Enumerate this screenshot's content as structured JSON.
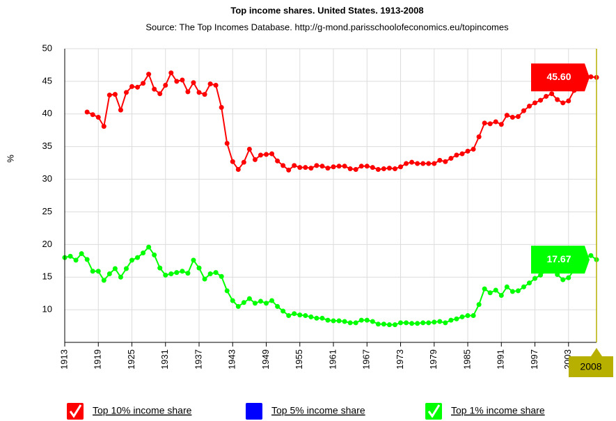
{
  "chart_data": {
    "type": "line",
    "title": "Top income shares. United States. 1913-2008",
    "subtitle": "Source: The Top Incomes Database. http://g-mond.parisschoolofeconomics.eu/topincomes",
    "y_label": "%",
    "x": [
      1913,
      1914,
      1915,
      1916,
      1917,
      1918,
      1919,
      1920,
      1921,
      1922,
      1923,
      1924,
      1925,
      1926,
      1927,
      1928,
      1929,
      1930,
      1931,
      1932,
      1933,
      1934,
      1935,
      1936,
      1937,
      1938,
      1939,
      1940,
      1941,
      1942,
      1943,
      1944,
      1945,
      1946,
      1947,
      1948,
      1949,
      1950,
      1951,
      1952,
      1953,
      1954,
      1955,
      1956,
      1957,
      1958,
      1959,
      1960,
      1961,
      1962,
      1963,
      1964,
      1965,
      1966,
      1967,
      1968,
      1969,
      1970,
      1971,
      1972,
      1973,
      1974,
      1975,
      1976,
      1977,
      1978,
      1979,
      1980,
      1981,
      1982,
      1983,
      1984,
      1985,
      1986,
      1987,
      1988,
      1989,
      1990,
      1991,
      1992,
      1993,
      1994,
      1995,
      1996,
      1997,
      1998,
      1999,
      2000,
      2001,
      2002,
      2003,
      2004,
      2005,
      2006,
      2007,
      2008
    ],
    "xlim": [
      1913,
      2008
    ],
    "xticks": [
      1913,
      1919,
      1925,
      1931,
      1937,
      1943,
      1949,
      1955,
      1961,
      1967,
      1973,
      1979,
      1985,
      1991,
      1997,
      2003
    ],
    "ylim": [
      5,
      50
    ],
    "yticks": [
      10,
      15,
      20,
      25,
      30,
      35,
      40,
      45,
      50
    ],
    "grid": true,
    "series": [
      {
        "name": "Top 10% income share",
        "color": "#ff0000",
        "visible": true,
        "values": [
          null,
          null,
          null,
          null,
          40.3,
          39.9,
          39.5,
          38.1,
          42.9,
          43.0,
          40.6,
          43.3,
          44.2,
          44.1,
          44.7,
          46.1,
          43.8,
          43.1,
          44.4,
          46.3,
          45.0,
          45.2,
          43.4,
          44.8,
          43.3,
          43.0,
          44.6,
          44.4,
          41.0,
          35.5,
          32.7,
          31.5,
          32.6,
          34.6,
          33.0,
          33.7,
          33.8,
          33.9,
          32.8,
          32.1,
          31.4,
          32.1,
          31.8,
          31.8,
          31.7,
          32.1,
          32.0,
          31.7,
          31.9,
          32.0,
          32.0,
          31.6,
          31.5,
          32.0,
          32.0,
          31.8,
          31.5,
          31.6,
          31.7,
          31.6,
          31.9,
          32.4,
          32.6,
          32.4,
          32.4,
          32.4,
          32.4,
          32.9,
          32.7,
          33.2,
          33.7,
          33.9,
          34.3,
          34.6,
          36.5,
          38.6,
          38.5,
          38.8,
          38.4,
          39.8,
          39.5,
          39.6,
          40.5,
          41.2,
          41.7,
          42.1,
          42.7,
          43.1,
          42.2,
          41.7,
          42.0,
          43.6,
          44.9,
          45.5,
          45.7,
          45.6
        ],
        "value_labels": [
          null,
          null,
          null,
          null,
          null,
          null,
          null,
          null,
          null,
          null,
          null,
          null,
          null,
          null,
          null,
          null,
          null,
          null,
          null,
          null,
          null,
          null,
          null,
          null,
          null,
          null,
          null,
          null,
          null,
          null,
          null,
          null,
          null,
          null,
          null,
          null,
          null,
          null,
          null,
          null,
          null,
          null,
          null,
          null,
          null,
          null,
          null,
          null,
          null,
          null,
          null,
          null,
          null,
          null,
          null,
          null,
          null,
          null,
          null,
          null,
          null,
          null,
          null,
          null,
          null,
          null,
          null,
          null,
          null,
          null,
          null,
          null,
          null,
          null,
          null,
          null,
          null,
          null,
          null,
          null,
          null,
          null,
          null,
          null,
          null,
          null,
          null,
          null,
          null,
          null,
          null,
          null,
          null,
          null,
          null,
          "45.60"
        ]
      },
      {
        "name": "Top 5% income share",
        "color": "#0000ff",
        "visible": false,
        "values": [
          null,
          null,
          null,
          null,
          null,
          null,
          null,
          null,
          null,
          null,
          null,
          null,
          null,
          null,
          null,
          null,
          null,
          null,
          null,
          null,
          null,
          null,
          null,
          null,
          null,
          null,
          null,
          null,
          null,
          null,
          null,
          null,
          null,
          null,
          null,
          null,
          null,
          null,
          null,
          null,
          null,
          null,
          null,
          null,
          null,
          null,
          null,
          null,
          null,
          null,
          null,
          null,
          null,
          null,
          null,
          null,
          null,
          null,
          null,
          null,
          null,
          null,
          null,
          null,
          null,
          null,
          null,
          null,
          null,
          null,
          null,
          null,
          null,
          null,
          null,
          null,
          null,
          null,
          null,
          null,
          null,
          null,
          null,
          null,
          null,
          null,
          null,
          null,
          null,
          null,
          null,
          null,
          null,
          null,
          null,
          null
        ]
      },
      {
        "name": "Top 1% income share",
        "color": "#00ff00",
        "visible": true,
        "values": [
          18.0,
          18.2,
          17.6,
          18.6,
          17.7,
          15.9,
          15.9,
          14.5,
          15.5,
          16.3,
          15.0,
          16.3,
          17.6,
          18.0,
          18.7,
          19.6,
          18.4,
          16.4,
          15.3,
          15.5,
          15.7,
          15.9,
          15.6,
          17.6,
          16.4,
          14.7,
          15.5,
          15.7,
          15.1,
          12.9,
          11.4,
          10.5,
          11.1,
          11.7,
          11.0,
          11.3,
          11.0,
          11.4,
          10.5,
          9.8,
          9.1,
          9.4,
          9.2,
          9.1,
          8.9,
          8.7,
          8.7,
          8.4,
          8.3,
          8.3,
          8.2,
          8.0,
          8.0,
          8.4,
          8.4,
          8.2,
          7.8,
          7.8,
          7.7,
          7.7,
          8.0,
          8.0,
          7.9,
          7.9,
          8.0,
          8.0,
          8.1,
          8.2,
          8.0,
          8.4,
          8.6,
          8.9,
          9.1,
          9.1,
          10.8,
          13.2,
          12.6,
          13.0,
          12.2,
          13.5,
          12.8,
          12.9,
          13.5,
          14.1,
          14.8,
          15.3,
          16.0,
          16.5,
          15.4,
          14.6,
          14.9,
          16.1,
          17.4,
          18.0,
          18.3,
          17.67
        ],
        "value_labels": [
          null,
          null,
          null,
          null,
          null,
          null,
          null,
          null,
          null,
          null,
          null,
          null,
          null,
          null,
          null,
          null,
          null,
          null,
          null,
          null,
          null,
          null,
          null,
          null,
          null,
          null,
          null,
          null,
          null,
          null,
          null,
          null,
          null,
          null,
          null,
          null,
          null,
          null,
          null,
          null,
          null,
          null,
          null,
          null,
          null,
          null,
          null,
          null,
          null,
          null,
          null,
          null,
          null,
          null,
          null,
          null,
          null,
          null,
          null,
          null,
          null,
          null,
          null,
          null,
          null,
          null,
          null,
          null,
          null,
          null,
          null,
          null,
          null,
          null,
          null,
          null,
          null,
          null,
          null,
          null,
          null,
          null,
          null,
          null,
          null,
          null,
          null,
          null,
          null,
          null,
          null,
          null,
          null,
          null,
          null,
          "17.67"
        ]
      }
    ]
  }
}
